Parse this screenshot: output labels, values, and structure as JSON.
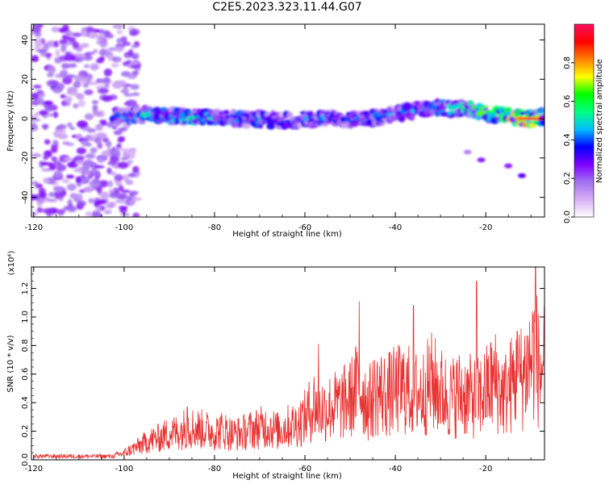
{
  "title": "C2E5.2023.323.11.44.G07",
  "chart_data": [
    {
      "type": "heatmap",
      "title": "C2E5.2023.323.11.44.G07",
      "xlabel": "Height of straight line (km)",
      "ylabel": "Frequency (Hz)",
      "xlim": [
        -120.5,
        -7
      ],
      "ylim": [
        -50,
        48
      ],
      "x_ticks": [
        -120,
        -100,
        -80,
        -60,
        -40,
        -20
      ],
      "y_ticks": [
        -40,
        -20,
        0,
        20,
        40
      ],
      "colorbar": {
        "label": "Normalized spectral amplitude",
        "ticks": [
          "0.0",
          "0.2",
          "0.4",
          "0.6",
          "0.8"
        ],
        "range": [
          0,
          1
        ],
        "colors": [
          "#ffffff",
          "#d9b0f5",
          "#a070f0",
          "#8000ff",
          "#0000ff",
          "#00bfff",
          "#00ff80",
          "#00ff00",
          "#ffff00",
          "#ff8000",
          "#ff0000",
          "#ff1060"
        ]
      },
      "ridge": {
        "description": "main frequency ridge",
        "x": [
          -102,
          -95,
          -85,
          -75,
          -65,
          -55,
          -45,
          -38,
          -32,
          -25,
          -20,
          -15,
          -10,
          -7
        ],
        "frequency_hz": [
          1,
          2,
          1,
          0,
          -1,
          0,
          0,
          3,
          6,
          5,
          3,
          1,
          0,
          1
        ],
        "amplitude": [
          0.45,
          0.5,
          0.55,
          0.5,
          0.45,
          0.45,
          0.45,
          0.45,
          0.5,
          0.55,
          0.7,
          0.75,
          0.9,
          0.6
        ]
      },
      "secondary_feature": {
        "x": [
          -24,
          -21,
          -15,
          -12
        ],
        "frequency_hz": [
          -17,
          -21,
          -24,
          -29
        ],
        "amplitude": [
          0.15,
          0.25,
          0.25,
          0.3
        ]
      },
      "noise_region_x": [
        -120,
        -103
      ]
    },
    {
      "type": "line",
      "xlabel": "Height of straight line (km)",
      "ylabel": "SNR (10 * v/v)",
      "y_scale_label": "(x10⁴)",
      "xlim": [
        -120.5,
        -7
      ],
      "ylim": [
        0,
        1.35
      ],
      "x_ticks": [
        -120,
        -100,
        -80,
        -60,
        -40,
        -20
      ],
      "y_ticks": [
        "0.0",
        "0.2",
        "0.4",
        "0.6",
        "0.8",
        "1.0",
        "1.2"
      ],
      "line_color": "#e83030",
      "series": [
        {
          "x": [
            -120,
            -115,
            -110,
            -105,
            -102,
            -100,
            -98,
            -96,
            -94,
            -92,
            -90,
            -88,
            -86,
            -84,
            -82,
            -80,
            -78,
            -76,
            -74,
            -72,
            -70,
            -68,
            -66,
            -64,
            -62,
            -60,
            -58,
            -56,
            -54,
            -52,
            -50,
            -48,
            -46,
            -44,
            -42,
            -40,
            -38,
            -36,
            -34,
            -32,
            -30,
            -28,
            -26,
            -24,
            -22,
            -20,
            -18,
            -16,
            -14,
            -12,
            -10,
            -9,
            -8,
            -7
          ],
          "y": [
            0.02,
            0.02,
            0.02,
            0.03,
            0.04,
            0.06,
            0.1,
            0.14,
            0.18,
            0.2,
            0.24,
            0.25,
            0.3,
            0.28,
            0.27,
            0.25,
            0.27,
            0.23,
            0.24,
            0.27,
            0.29,
            0.3,
            0.26,
            0.3,
            0.32,
            0.38,
            0.5,
            0.45,
            0.48,
            0.5,
            0.55,
            0.68,
            0.5,
            0.62,
            0.58,
            0.62,
            0.65,
            0.6,
            0.6,
            0.7,
            0.62,
            0.55,
            0.6,
            0.58,
            0.55,
            0.62,
            0.72,
            0.58,
            0.7,
            0.75,
            0.9,
            1.0,
            0.75,
            0.95
          ]
        }
      ],
      "peaks": [
        {
          "x": -86,
          "y": 0.37
        },
        {
          "x": -57,
          "y": 0.81
        },
        {
          "x": -48,
          "y": 1.11
        },
        {
          "x": -36,
          "y": 1.08
        },
        {
          "x": -22,
          "y": 1.25
        },
        {
          "x": -13,
          "y": 0.9
        },
        {
          "x": -9,
          "y": 1.35
        }
      ]
    }
  ]
}
